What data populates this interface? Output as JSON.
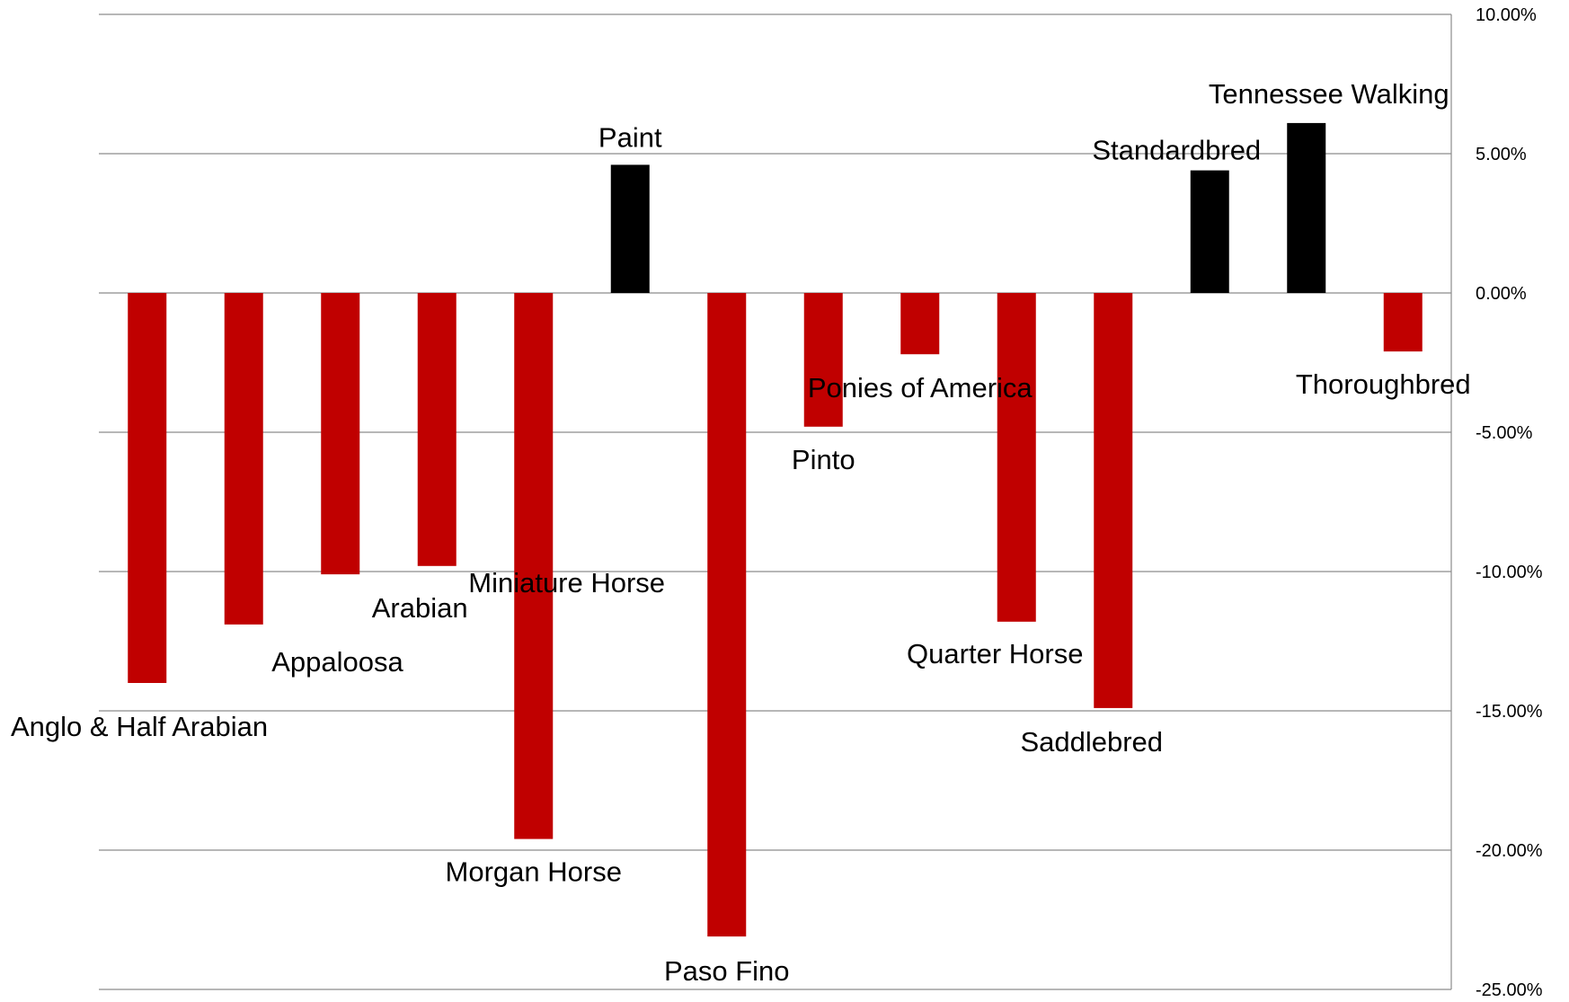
{
  "chart_data": {
    "type": "bar",
    "title": "",
    "xlabel": "",
    "ylabel": "",
    "ylim": [
      -25,
      10
    ],
    "y_ticks": [
      "10.00%",
      "5.00%",
      "0.00%",
      "-5.00%",
      "-10.00%",
      "-15.00%",
      "-20.00%",
      "-25.00%"
    ],
    "y_axis_position": "right",
    "grid": true,
    "legend": "none",
    "colors": {
      "negative": "#c00000",
      "positive": "#000000",
      "grid": "#8c8c8c"
    },
    "categories": [
      "Anglo & Half Arabian",
      "Appaloosa",
      "Arabian",
      "Miniature Horse",
      "Morgan Horse",
      "Paint",
      "Paso Fino",
      "Pinto",
      "Ponies of America",
      "Quarter Horse",
      "Saddlebred",
      "Standardbred",
      "Tennessee Walking",
      "Thoroughbred"
    ],
    "values": [
      -14.0,
      -11.9,
      -10.1,
      -9.8,
      -19.6,
      4.6,
      -23.1,
      -4.8,
      -2.2,
      -11.8,
      -14.9,
      4.4,
      6.1,
      -2.1
    ]
  }
}
